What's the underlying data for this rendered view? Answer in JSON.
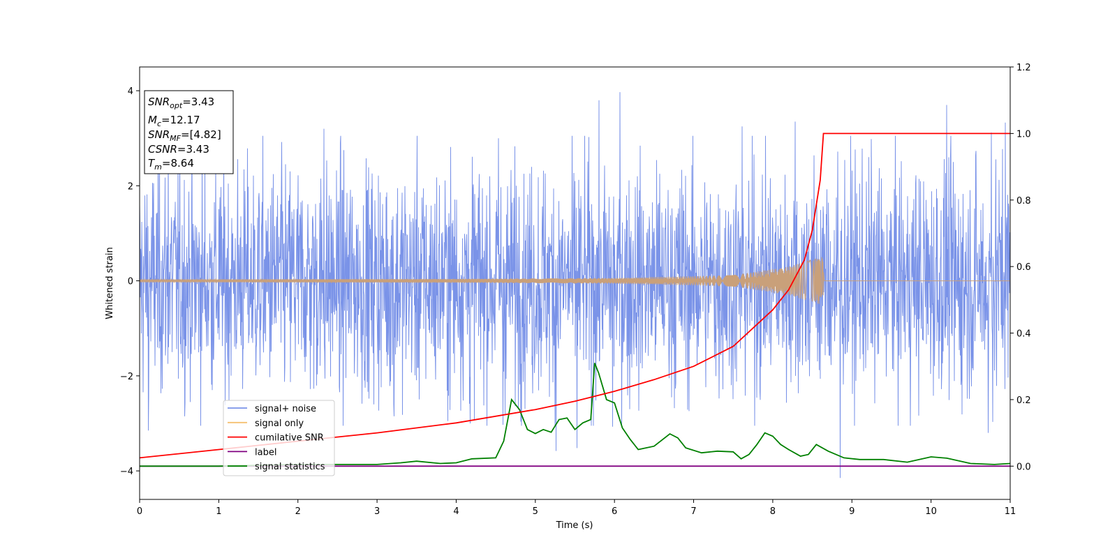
{
  "chart_data": {
    "type": "line",
    "title": "",
    "xlabel": "Time (s)",
    "ylabel": "Whitened strain",
    "xlim": [
      0,
      11
    ],
    "ylim": [
      -4.6,
      4.5
    ],
    "y2lim": [
      -0.1,
      1.2
    ],
    "xticks": [
      "0",
      "1",
      "2",
      "3",
      "4",
      "5",
      "6",
      "7",
      "8",
      "9",
      "10",
      "11"
    ],
    "yticks": [
      "−4",
      "−2",
      "0",
      "2",
      "4"
    ],
    "y2ticks": [
      "0.0",
      "0.2",
      "0.4",
      "0.6",
      "0.8",
      "1.0",
      "1.2"
    ],
    "legend_position": "lower-left",
    "info_box": {
      "position": "upper-left",
      "lines": [
        {
          "var": "SNR",
          "sub": "opt",
          "value": "=3.43"
        },
        {
          "var": "M",
          "sub": "c",
          "value": "=12.17"
        },
        {
          "var": "SNR",
          "sub": "MF",
          "value": "=[4.82]"
        },
        {
          "var": "CSNR",
          "sub": "",
          "value": "=3.43"
        },
        {
          "var": "T",
          "sub": "m",
          "value": "=8.64"
        }
      ]
    },
    "series": [
      {
        "name": "signal+ noise",
        "axis": "left",
        "color": "#7a93e8",
        "kind": "noise",
        "typical_amplitude": 2.2,
        "peaks_up": [
          [
            0.36,
            3.1
          ],
          [
            2.33,
            3.2
          ],
          [
            4.53,
            3.0
          ],
          [
            5.8,
            3.8
          ],
          [
            6.07,
            3.97
          ],
          [
            7.61,
            3.25
          ],
          [
            8.28,
            3.35
          ],
          [
            10.2,
            3.7
          ],
          [
            10.76,
            3.12
          ],
          [
            10.94,
            3.33
          ]
        ],
        "peaks_down": [
          [
            0.11,
            -3.15
          ],
          [
            3.21,
            -2.85
          ],
          [
            4.17,
            -3.0
          ],
          [
            4.59,
            -3.03
          ],
          [
            5.26,
            -3.58
          ],
          [
            5.52,
            -3.52
          ],
          [
            5.97,
            -3.07
          ],
          [
            8.85,
            -4.15
          ],
          [
            10.72,
            -3.2
          ]
        ]
      },
      {
        "name": "signal only",
        "axis": "left",
        "color": "#f5c070",
        "kind": "chirp",
        "t_merger": 8.64,
        "envelope": [
          [
            0,
            0.03
          ],
          [
            4,
            0.04
          ],
          [
            6,
            0.06
          ],
          [
            7.5,
            0.12
          ],
          [
            8.2,
            0.3
          ],
          [
            8.5,
            0.45
          ],
          [
            8.64,
            0.52
          ],
          [
            8.65,
            0.0
          ],
          [
            11,
            0.0
          ]
        ]
      },
      {
        "name": "cumilative SNR",
        "axis": "right",
        "color": "#ff0000",
        "x": [
          0,
          1,
          2,
          3,
          4,
          5,
          5.5,
          6,
          6.5,
          7,
          7.5,
          8,
          8.2,
          8.4,
          8.5,
          8.6,
          8.64,
          8.65,
          11
        ],
        "values": [
          0.025,
          0.05,
          0.075,
          0.1,
          0.13,
          0.17,
          0.195,
          0.225,
          0.26,
          0.3,
          0.36,
          0.47,
          0.53,
          0.62,
          0.71,
          0.86,
          1.0,
          1.0,
          1.0
        ]
      },
      {
        "name": "label",
        "axis": "right",
        "color": "#800080",
        "x": [
          0,
          11
        ],
        "values": [
          0.0,
          0.0
        ]
      },
      {
        "name": "signal statistics",
        "axis": "right",
        "color": "#008000",
        "x": [
          0,
          1,
          2,
          2.5,
          3,
          3.3,
          3.5,
          3.8,
          4.0,
          4.2,
          4.5,
          4.6,
          4.7,
          4.8,
          4.9,
          5.0,
          5.1,
          5.2,
          5.3,
          5.4,
          5.5,
          5.6,
          5.7,
          5.75,
          5.8,
          5.9,
          6.0,
          6.1,
          6.2,
          6.3,
          6.5,
          6.7,
          6.8,
          6.9,
          7.1,
          7.3,
          7.5,
          7.6,
          7.7,
          7.8,
          7.9,
          8.0,
          8.1,
          8.2,
          8.35,
          8.45,
          8.55,
          8.7,
          8.9,
          9.1,
          9.4,
          9.7,
          10.0,
          10.2,
          10.5,
          10.8,
          11.0
        ],
        "values": [
          0.0,
          0.0,
          0.005,
          0.005,
          0.005,
          0.01,
          0.015,
          0.008,
          0.01,
          0.022,
          0.025,
          0.075,
          0.2,
          0.17,
          0.11,
          0.098,
          0.11,
          0.102,
          0.14,
          0.145,
          0.11,
          0.13,
          0.14,
          0.31,
          0.28,
          0.2,
          0.19,
          0.115,
          0.08,
          0.05,
          0.06,
          0.097,
          0.085,
          0.055,
          0.04,
          0.045,
          0.043,
          0.022,
          0.035,
          0.065,
          0.1,
          0.09,
          0.065,
          0.05,
          0.03,
          0.035,
          0.065,
          0.045,
          0.025,
          0.02,
          0.02,
          0.012,
          0.028,
          0.024,
          0.008,
          0.005,
          0.008
        ]
      }
    ]
  }
}
